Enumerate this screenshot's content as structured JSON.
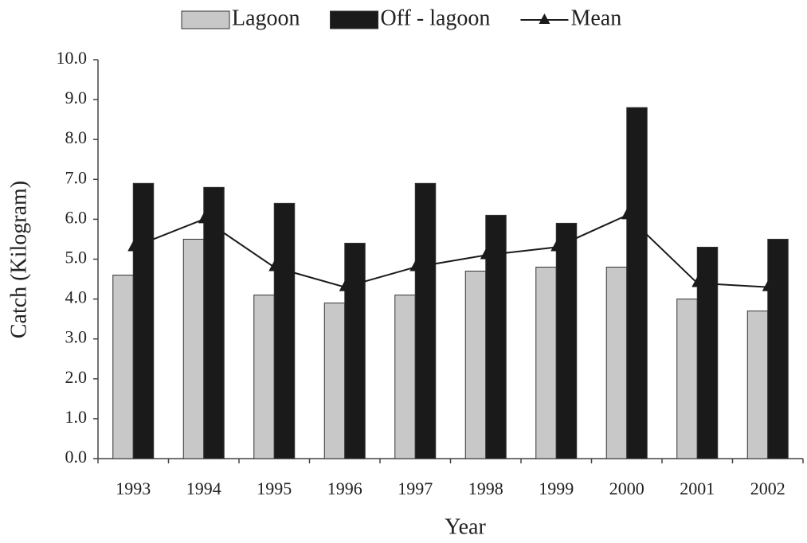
{
  "chart_data": {
    "type": "bar",
    "categories": [
      "1993",
      "1994",
      "1995",
      "1996",
      "1997",
      "1998",
      "1999",
      "2000",
      "2001",
      "2002"
    ],
    "series": [
      {
        "name": "Lagoon",
        "type": "bar",
        "color": "#c8c8c8",
        "values": [
          4.6,
          5.5,
          4.1,
          3.9,
          4.1,
          4.7,
          4.8,
          4.8,
          4.0,
          3.7
        ]
      },
      {
        "name": "Off - lagoon",
        "type": "bar",
        "color": "#1a1a1a",
        "values": [
          6.9,
          6.8,
          6.4,
          5.4,
          6.9,
          6.1,
          5.9,
          8.8,
          5.3,
          5.5
        ]
      },
      {
        "name": "Mean",
        "type": "line",
        "color": "#1a1a1a",
        "values": [
          5.3,
          6.0,
          4.8,
          4.3,
          4.8,
          5.1,
          5.3,
          6.1,
          4.4,
          4.3
        ]
      }
    ],
    "x_label": "Year",
    "y_label": "Catch (Kilogram)",
    "ylim": [
      0,
      10
    ],
    "yticks": [
      {
        "value": 0,
        "label": "0.0"
      },
      {
        "value": 1,
        "label": "1.0"
      },
      {
        "value": 2,
        "label": "2.0"
      },
      {
        "value": 3,
        "label": "3.0"
      },
      {
        "value": 4,
        "label": "4.0"
      },
      {
        "value": 5,
        "label": "5.0"
      },
      {
        "value": 6,
        "label": "6.0"
      },
      {
        "value": 7,
        "label": "7.0"
      },
      {
        "value": 8,
        "label": "8.0"
      },
      {
        "value": 9,
        "label": "9.0"
      },
      {
        "value": 10,
        "label": "10.0"
      }
    ],
    "legend": "top"
  }
}
